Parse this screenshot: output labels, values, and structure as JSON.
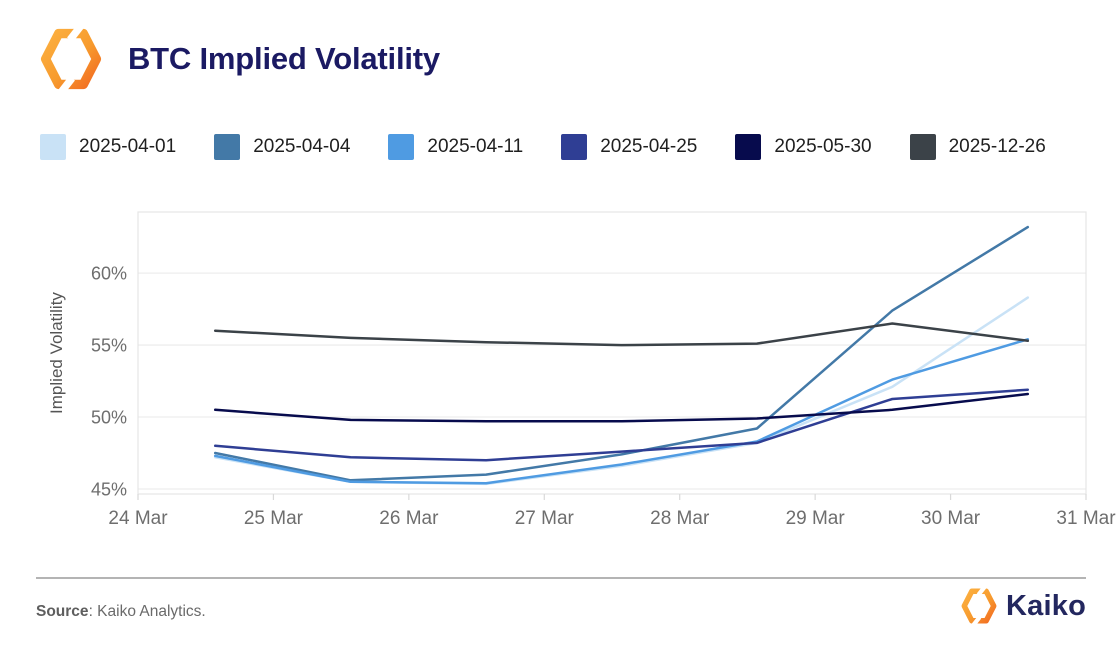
{
  "header": {
    "title": "BTC Implied Volatility"
  },
  "footer": {
    "source_label": "Source",
    "source_rest": ": Kaiko Analytics.",
    "brand": "Kaiko"
  },
  "icons": {
    "header_logo": "kaiko-mark",
    "footer_logo": "kaiko-mark"
  },
  "brand_colors": {
    "orange_light": "#fcb040",
    "orange_dark": "#f26a21",
    "navy": "#1b1a63"
  },
  "chart_data": {
    "type": "line",
    "title": "BTC Implied Volatility",
    "xlabel": "",
    "ylabel": "Implied Volatility",
    "grid": "horizontal",
    "legend_position": "top",
    "x_axis": {
      "tick_labels": [
        "24 Mar",
        "25 Mar",
        "26 Mar",
        "27 Mar",
        "28 Mar",
        "29 Mar",
        "30 Mar",
        "31 Mar"
      ],
      "tick_positions_days": [
        0,
        1,
        2,
        3,
        4,
        5,
        6,
        7
      ]
    },
    "y_axis": {
      "range": [
        44.65,
        64.25
      ],
      "ticks": [
        {
          "value": 45,
          "label": "45%"
        },
        {
          "value": 50,
          "label": "50%"
        },
        {
          "value": 55,
          "label": "55%"
        },
        {
          "value": 60,
          "label": "60%"
        }
      ]
    },
    "x_days": [
      0.57,
      1.57,
      2.57,
      3.57,
      4.57,
      5.57,
      6.57
    ],
    "series": [
      {
        "name": "2025-04-01",
        "color": "#c9e2f6",
        "values": [
          47.2,
          45.5,
          45.35,
          46.6,
          48.2,
          52.1,
          58.3
        ]
      },
      {
        "name": "2025-04-04",
        "color": "#4379a7",
        "values": [
          47.5,
          45.6,
          46.0,
          47.4,
          49.2,
          57.4,
          63.2
        ]
      },
      {
        "name": "2025-04-11",
        "color": "#4f9be2",
        "values": [
          47.3,
          45.5,
          45.4,
          46.7,
          48.3,
          52.6,
          55.4
        ]
      },
      {
        "name": "2025-04-25",
        "color": "#2f3e94",
        "values": [
          48.0,
          47.2,
          47.0,
          47.6,
          48.2,
          51.25,
          51.9
        ]
      },
      {
        "name": "2025-05-30",
        "color": "#070b4d",
        "values": [
          50.5,
          49.8,
          49.7,
          49.7,
          49.9,
          50.5,
          51.6
        ]
      },
      {
        "name": "2025-12-26",
        "color": "#3b4248",
        "values": [
          56.0,
          55.5,
          55.2,
          55.0,
          55.1,
          56.5,
          55.3
        ]
      }
    ]
  }
}
